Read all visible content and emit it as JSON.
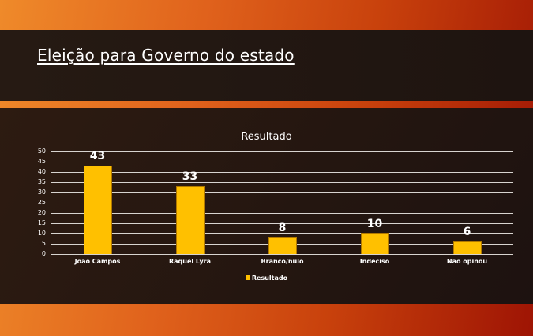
{
  "slide": {
    "title": "Eleição para Governo do estado"
  },
  "chart_data": {
    "type": "bar",
    "title": "Resultado",
    "categories": [
      "João Campos",
      "Raquel Lyra",
      "Branco/nulo",
      "Indeciso",
      "Não opinou"
    ],
    "series": [
      {
        "name": "Resultado",
        "values": [
          43,
          33,
          8,
          10,
          6
        ],
        "color": "#ffc000"
      }
    ],
    "values": [
      43,
      33,
      8,
      10,
      6
    ],
    "xlabel": "",
    "ylabel": "",
    "ylim": [
      0,
      50
    ],
    "yticks": [
      "0",
      "5",
      "10",
      "15",
      "20",
      "25",
      "30",
      "35",
      "40",
      "45",
      "50"
    ],
    "grid": true,
    "legend": {
      "position": "bottom",
      "entries": [
        "Resultado"
      ]
    },
    "data_labels": [
      "43",
      "33",
      "8",
      "10",
      "6"
    ]
  }
}
